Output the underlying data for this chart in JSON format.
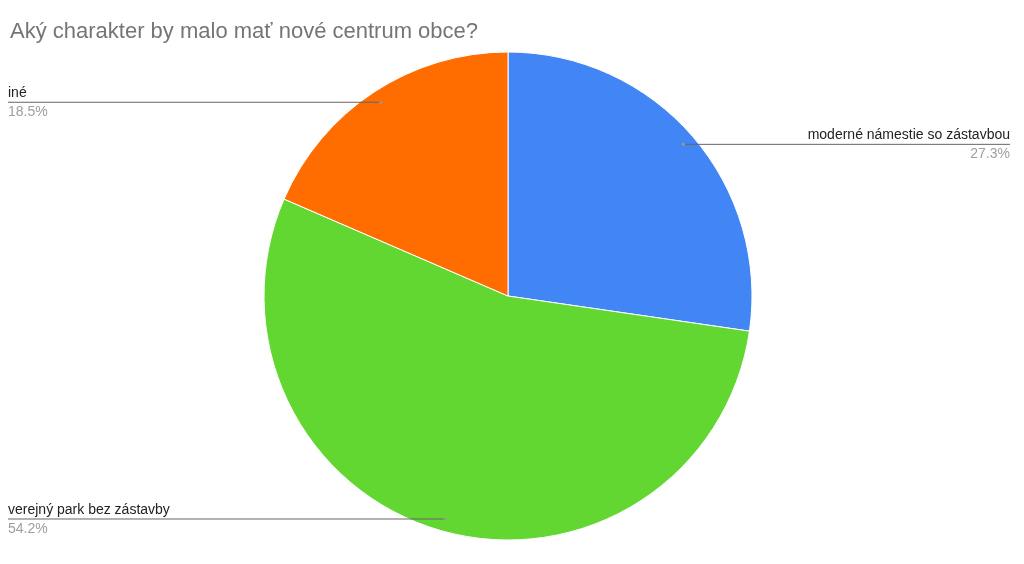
{
  "chart_data": {
    "type": "pie",
    "title": "Aký charakter by malo mať nové centrum obce?",
    "categories": [
      "moderné námestie so zástavbou",
      "verejný park bez zástavby",
      "iné"
    ],
    "values": [
      27.3,
      54.2,
      18.5
    ],
    "value_labels": [
      "27.3%",
      "54.2%",
      "18.5%"
    ],
    "colors": [
      "#4285f4",
      "#62d732",
      "#ff6d01"
    ]
  }
}
